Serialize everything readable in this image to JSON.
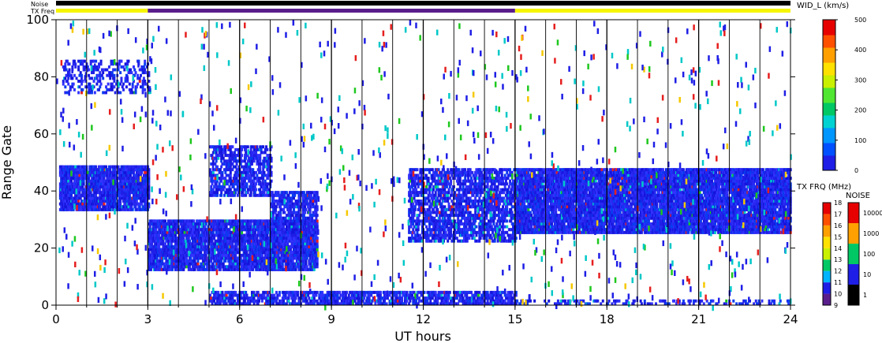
{
  "chart_data": {
    "type": "heatmap",
    "xlabel": "UT hours",
    "ylabel": "Range Gate",
    "xlim": [
      0,
      24
    ],
    "ylim": [
      0,
      100
    ],
    "xticks": [
      "0",
      "3",
      "6",
      "9",
      "12",
      "15",
      "18",
      "21",
      "24"
    ],
    "yticks": [
      "0",
      "20",
      "40",
      "60",
      "80",
      "100"
    ],
    "top_bars": {
      "noise_label": "Noise",
      "txfreq_label": "TX Freq",
      "txfreq_segments": [
        {
          "from": 0,
          "to": 3,
          "color": "#f5f500"
        },
        {
          "from": 3,
          "to": 15,
          "color": "#5a1e8c"
        },
        {
          "from": 15,
          "to": 24,
          "color": "#f5f500"
        }
      ]
    },
    "colorbars": {
      "width": {
        "label": "WID_L (km/s)",
        "ticks": [
          "0",
          "100",
          "200",
          "300",
          "400",
          "500"
        ],
        "range": [
          0,
          500
        ]
      },
      "txfreq": {
        "label": "TX FRQ (MHz)",
        "ticks": [
          "9",
          "10",
          "11",
          "12",
          "13",
          "14",
          "15",
          "16",
          "17",
          "18"
        ]
      },
      "noise": {
        "label": "NOISE",
        "ticks": [
          "1",
          "10",
          "100",
          "1000",
          "10000"
        ]
      }
    },
    "echo_regions": [
      {
        "from": 0.1,
        "to": 3.0,
        "y0": 33,
        "y1": 49,
        "density": 0.85
      },
      {
        "from": 0.2,
        "to": 3.0,
        "y0": 74,
        "y1": 86,
        "density": 0.25
      },
      {
        "from": 3.0,
        "to": 8.5,
        "y0": 12,
        "y1": 30,
        "density": 0.8
      },
      {
        "from": 5.0,
        "to": 7.0,
        "y0": 38,
        "y1": 56,
        "density": 0.5
      },
      {
        "from": 7.0,
        "to": 8.5,
        "y0": 20,
        "y1": 40,
        "density": 0.6
      },
      {
        "from": 11.5,
        "to": 15.0,
        "y0": 22,
        "y1": 48,
        "density": 0.55
      },
      {
        "from": 15.0,
        "to": 24.0,
        "y0": 25,
        "y1": 48,
        "density": 0.85
      },
      {
        "from": 5.0,
        "to": 15.0,
        "y0": 0,
        "y1": 5,
        "density": 0.6
      },
      {
        "from": 15.0,
        "to": 24.0,
        "y0": 0,
        "y1": 2,
        "density": 0.3
      }
    ]
  }
}
